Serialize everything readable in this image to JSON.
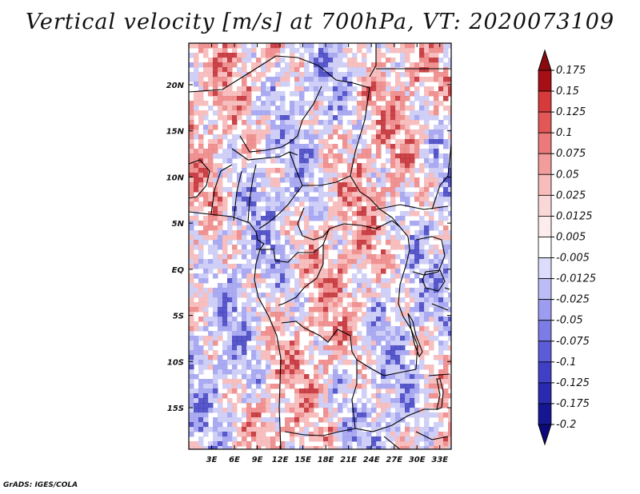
{
  "title": "Vertical velocity [m/s] at 700hPa, VT: 2020073109",
  "footer": "GrADS: IGES/COLA",
  "map": {
    "lon_range": [
      0,
      34.5
    ],
    "lat_range": [
      -19.5,
      24.5
    ],
    "x_ticks": [
      {
        "value": 3,
        "label": "3E"
      },
      {
        "value": 6,
        "label": "6E"
      },
      {
        "value": 9,
        "label": "9E"
      },
      {
        "value": 12,
        "label": "12E"
      },
      {
        "value": 15,
        "label": "15E"
      },
      {
        "value": 18,
        "label": "18E"
      },
      {
        "value": 21,
        "label": "21E"
      },
      {
        "value": 24,
        "label": "24E"
      },
      {
        "value": 27,
        "label": "27E"
      },
      {
        "value": 30,
        "label": "30E"
      },
      {
        "value": 33,
        "label": "33E"
      }
    ],
    "y_ticks": [
      {
        "value": 20,
        "label": "20N"
      },
      {
        "value": 15,
        "label": "15N"
      },
      {
        "value": 10,
        "label": "10N"
      },
      {
        "value": 5,
        "label": "5N"
      },
      {
        "value": 0,
        "label": "EQ"
      },
      {
        "value": -5,
        "label": "5S"
      },
      {
        "value": -10,
        "label": "10S"
      },
      {
        "value": -15,
        "label": "15S"
      }
    ]
  },
  "colorbar": {
    "levels": [
      {
        "label": "0.175",
        "color": "#a50f15"
      },
      {
        "label": "0.15",
        "color": "#c0242a"
      },
      {
        "label": "0.125",
        "color": "#d63a3a"
      },
      {
        "label": "0.1",
        "color": "#e35757"
      },
      {
        "label": "0.075",
        "color": "#ec7a7a"
      },
      {
        "label": "0.05",
        "color": "#f39c9c"
      },
      {
        "label": "0.025",
        "color": "#f8bcbc"
      },
      {
        "label": "0.0125",
        "color": "#fbd8d8"
      },
      {
        "label": "0.005",
        "color": "#fdecec"
      },
      {
        "label": "-0.005",
        "color": "#ffffff"
      },
      {
        "label": "-0.0125",
        "color": "#dcdcfb"
      },
      {
        "label": "-0.025",
        "color": "#bcbcf6"
      },
      {
        "label": "-0.05",
        "color": "#9c9cf0"
      },
      {
        "label": "-0.075",
        "color": "#7c7ce6"
      },
      {
        "label": "-0.1",
        "color": "#5c5cd9"
      },
      {
        "label": "-0.125",
        "color": "#4040c7"
      },
      {
        "label": "-0.175",
        "color": "#2a2ab0"
      },
      {
        "label": "-0.2",
        "color": "#161693"
      }
    ],
    "top_extend_color": "#8a0a10",
    "bottom_extend_color": "#0a0a7a"
  },
  "field_palette": {
    "neutral": "#ffffff",
    "pos_light": "#f6b4b4",
    "pos_mid": "#ec8080",
    "pos_strong": "#c0242a",
    "neg_light": "#c8c8f6",
    "neg_mid": "#9c9cf0",
    "neg_strong": "#3c3cc0"
  }
}
